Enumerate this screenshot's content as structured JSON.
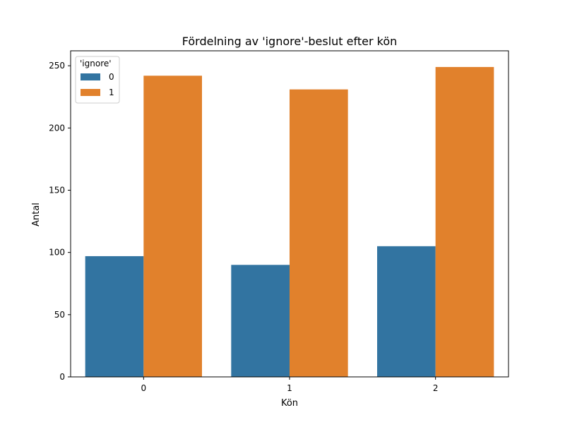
{
  "chart_data": {
    "type": "bar",
    "title": "Fördelning av 'ignore'-beslut efter kön",
    "xlabel": "Kön",
    "ylabel": "Antal",
    "categories": [
      "0",
      "1",
      "2"
    ],
    "series": [
      {
        "name": "0",
        "values": [
          97,
          90,
          105
        ],
        "color": "#3274a1"
      },
      {
        "name": "1",
        "values": [
          242,
          231,
          249
        ],
        "color": "#e1812c"
      }
    ],
    "ylim": [
      0,
      262
    ],
    "yticks": [
      0,
      50,
      100,
      150,
      200,
      250
    ],
    "legend": {
      "title": "'ignore'",
      "position": "top-left"
    },
    "grid": false
  }
}
